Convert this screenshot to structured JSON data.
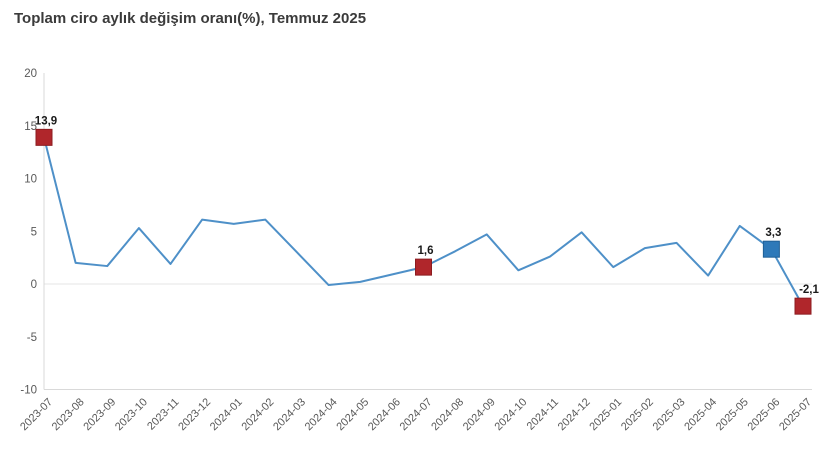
{
  "title": "Toplam ciro aylık değişim oranı(%), Temmuz 2025",
  "chart_data": {
    "type": "line",
    "title": "Toplam ciro aylık değişim oranı(%), Temmuz 2025",
    "xlabel": "",
    "ylabel": "",
    "ylim": [
      -10,
      20
    ],
    "yticks": [
      20,
      15,
      10,
      5,
      0,
      -5,
      -10
    ],
    "grid": false,
    "legend": "none",
    "line_color": "#4e90c8",
    "axis_color": "#d9d9d9",
    "zero_line_color": "#e4e4e4",
    "tick_label_color": "#595959",
    "data_label_color": "#1a1a1a",
    "x": [
      "2023-07",
      "2023-08",
      "2023-09",
      "2023-10",
      "2023-11",
      "2023-12",
      "2024-01",
      "2024-02",
      "2024-03",
      "2024-04",
      "2024-05",
      "2024-06",
      "2024-07",
      "2024-08",
      "2024-09",
      "2024-10",
      "2024-11",
      "2024-12",
      "2025-01",
      "2025-02",
      "2025-03",
      "2025-04",
      "2025-05",
      "2025-06",
      "2025-07"
    ],
    "values": [
      13.9,
      2.0,
      1.7,
      5.3,
      1.9,
      6.1,
      5.7,
      6.1,
      3.0,
      -0.1,
      0.2,
      0.9,
      1.6,
      3.1,
      4.7,
      1.3,
      2.6,
      4.9,
      1.6,
      3.4,
      3.9,
      0.8,
      5.5,
      3.3,
      -2.1
    ],
    "annotated_points": [
      {
        "x": "2023-07",
        "value": 13.9,
        "label": "13,9",
        "marker_color": "#b0262b",
        "marker_border": "#8c1c20"
      },
      {
        "x": "2024-07",
        "value": 1.6,
        "label": "1,6",
        "marker_color": "#b0262b",
        "marker_border": "#8c1c20"
      },
      {
        "x": "2025-06",
        "value": 3.3,
        "label": "3,3",
        "marker_color": "#2e79b9",
        "marker_border": "#1f5f96"
      },
      {
        "x": "2025-07",
        "value": -2.1,
        "label": "-2,1",
        "marker_color": "#b0262b",
        "marker_border": "#8c1c20"
      }
    ]
  }
}
